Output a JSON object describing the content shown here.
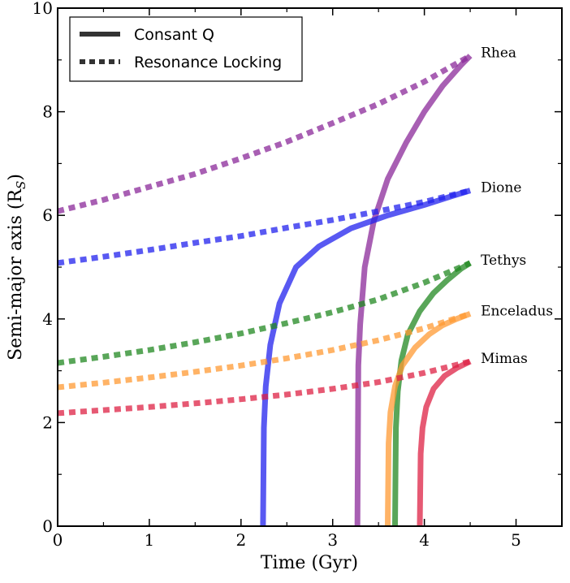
{
  "chart_data": {
    "type": "line",
    "title": "",
    "xlabel": "Time (Gyr)",
    "ylabel": "Semi-major axis (R",
    "ylabel_sub": "S",
    "ylabel_suffix": ")",
    "xlim": [
      0,
      5.5
    ],
    "ylim": [
      0,
      10
    ],
    "xticks": [
      0,
      1,
      2,
      3,
      4,
      5
    ],
    "yticks": [
      0,
      2,
      4,
      6,
      8,
      10
    ],
    "grid": false,
    "legend": {
      "placement": "top-left",
      "entries": [
        {
          "label": "Consant Q",
          "style": "solid",
          "color": "#333333"
        },
        {
          "label": "Resonance Locking",
          "style": "dotted",
          "color": "#333333"
        }
      ]
    },
    "moons": [
      {
        "name": "Rhea",
        "color": "#8b2a9a",
        "resonance_locking": {
          "x": [
            0,
            0.5,
            1,
            1.5,
            2,
            2.5,
            3,
            3.5,
            4,
            4.5
          ],
          "y": [
            6.08,
            6.3,
            6.55,
            6.8,
            7.1,
            7.42,
            7.78,
            8.15,
            8.58,
            9.08
          ]
        },
        "constant_q": {
          "x": [
            3.27,
            3.28,
            3.3,
            3.35,
            3.45,
            3.6,
            3.8,
            4.0,
            4.2,
            4.4,
            4.5
          ],
          "y": [
            0,
            3.1,
            3.9,
            5.0,
            5.9,
            6.7,
            7.4,
            8.0,
            8.5,
            8.9,
            9.08
          ]
        }
      },
      {
        "name": "Dione",
        "color": "#2222ee",
        "resonance_locking": {
          "x": [
            0,
            0.5,
            1,
            1.5,
            2,
            2.5,
            3,
            3.5,
            4,
            4.5
          ],
          "y": [
            5.08,
            5.2,
            5.33,
            5.47,
            5.6,
            5.76,
            5.91,
            6.08,
            6.26,
            6.48
          ]
        },
        "constant_q": {
          "x": [
            2.24,
            2.25,
            2.27,
            2.32,
            2.42,
            2.6,
            2.85,
            3.2,
            3.6,
            4.0,
            4.3,
            4.5
          ],
          "y": [
            0,
            1.9,
            2.7,
            3.5,
            4.3,
            5.0,
            5.4,
            5.75,
            6.0,
            6.2,
            6.37,
            6.48
          ]
        }
      },
      {
        "name": "Tethys",
        "color": "#228822",
        "resonance_locking": {
          "x": [
            0,
            0.5,
            1,
            1.5,
            2,
            2.5,
            3,
            3.5,
            4,
            4.5
          ],
          "y": [
            3.15,
            3.27,
            3.4,
            3.55,
            3.72,
            3.92,
            4.13,
            4.38,
            4.7,
            5.08
          ]
        },
        "constant_q": {
          "x": [
            3.68,
            3.69,
            3.71,
            3.75,
            3.82,
            3.95,
            4.1,
            4.25,
            4.4,
            4.5
          ],
          "y": [
            0,
            1.9,
            2.6,
            3.2,
            3.7,
            4.15,
            4.5,
            4.75,
            4.97,
            5.08
          ]
        }
      },
      {
        "name": "Enceladus",
        "color": "#ff9933",
        "resonance_locking": {
          "x": [
            0,
            0.5,
            1,
            1.5,
            2,
            2.5,
            3,
            3.5,
            4,
            4.5
          ],
          "y": [
            2.68,
            2.77,
            2.87,
            2.98,
            3.1,
            3.24,
            3.4,
            3.59,
            3.82,
            4.1
          ]
        },
        "constant_q": {
          "x": [
            3.6,
            3.61,
            3.63,
            3.68,
            3.76,
            3.9,
            4.05,
            4.2,
            4.35,
            4.5
          ],
          "y": [
            0,
            1.6,
            2.2,
            2.7,
            3.1,
            3.45,
            3.7,
            3.88,
            4.0,
            4.1
          ]
        }
      },
      {
        "name": "Mimas",
        "color": "#dd2244",
        "resonance_locking": {
          "x": [
            0,
            0.5,
            1,
            1.5,
            2,
            2.5,
            3,
            3.5,
            4,
            4.5
          ],
          "y": [
            2.18,
            2.24,
            2.3,
            2.37,
            2.45,
            2.54,
            2.65,
            2.78,
            2.96,
            3.18
          ]
        },
        "constant_q": {
          "x": [
            3.95,
            3.96,
            3.98,
            4.02,
            4.1,
            4.22,
            4.35,
            4.5
          ],
          "y": [
            0,
            1.4,
            1.9,
            2.3,
            2.65,
            2.9,
            3.05,
            3.18
          ]
        }
      }
    ]
  }
}
